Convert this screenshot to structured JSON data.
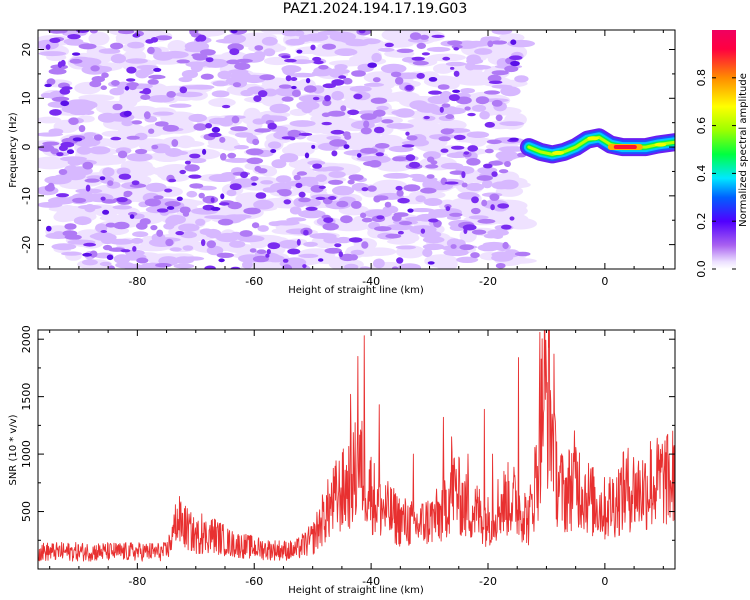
{
  "title": "PAZ1.2024.194.17.19.G03",
  "chart_data": [
    {
      "type": "heatmap",
      "xlabel": "Height of straight line (km)",
      "ylabel": "Frequency (Hz)",
      "xlim": [
        -97,
        12
      ],
      "ylim": [
        -25,
        24
      ],
      "xticks": [
        -80,
        -60,
        -40,
        -20,
        0
      ],
      "yticks": [
        -20,
        -10,
        0,
        10,
        20
      ],
      "colorbar": {
        "label": "Normalized spectral amplitude",
        "range": [
          0,
          1
        ],
        "ticks": [
          0.0,
          0.2,
          0.4,
          0.6,
          0.8
        ]
      },
      "signal_trace": [
        [
          -13,
          0.0
        ],
        [
          -11,
          -1.0
        ],
        [
          -9,
          -1.5
        ],
        [
          -7,
          -1.0
        ],
        [
          -5,
          0.0
        ],
        [
          -3,
          1.5
        ],
        [
          -1,
          2.0
        ],
        [
          1,
          0.5
        ],
        [
          3,
          0.0
        ],
        [
          5,
          0.0
        ],
        [
          7,
          0.0
        ],
        [
          9,
          0.5
        ],
        [
          12,
          1.0
        ]
      ]
    },
    {
      "type": "line",
      "xlabel": "Height of straight line (km)",
      "ylabel": "SNR (10 * v/v)",
      "xlim": [
        -97,
        12
      ],
      "ylim": [
        0,
        2080
      ],
      "xticks": [
        -80,
        -60,
        -40,
        -20,
        0
      ],
      "yticks": [
        500,
        1000,
        1500,
        2000
      ],
      "color": "#e83030",
      "baseline": [
        [
          -97,
          150
        ],
        [
          -75,
          150
        ],
        [
          -73,
          420
        ],
        [
          -70,
          280
        ],
        [
          -67,
          300
        ],
        [
          -64,
          220
        ],
        [
          -58,
          170
        ],
        [
          -53,
          160
        ],
        [
          -50,
          260
        ],
        [
          -48,
          460
        ],
        [
          -46,
          620
        ],
        [
          -44,
          720
        ],
        [
          -42,
          900
        ],
        [
          -41,
          800
        ],
        [
          -39,
          560
        ],
        [
          -35,
          420
        ],
        [
          -32,
          380
        ],
        [
          -28,
          470
        ],
        [
          -26,
          720
        ],
        [
          -24,
          550
        ],
        [
          -22,
          500
        ],
        [
          -20,
          420
        ],
        [
          -18,
          560
        ],
        [
          -16,
          620
        ],
        [
          -14,
          500
        ],
        [
          -13,
          420
        ],
        [
          -11.5,
          880
        ],
        [
          -10.5,
          1550
        ],
        [
          -9.5,
          1450
        ],
        [
          -8.5,
          850
        ],
        [
          -7,
          630
        ],
        [
          -5,
          800
        ],
        [
          -4,
          700
        ],
        [
          -2,
          580
        ],
        [
          0,
          520
        ],
        [
          2,
          600
        ],
        [
          4,
          700
        ],
        [
          6,
          680
        ],
        [
          8,
          720
        ],
        [
          10,
          790
        ],
        [
          12,
          720
        ]
      ],
      "peaks": [
        [
          -73.5,
          560
        ],
        [
          -69,
          480
        ],
        [
          -43.5,
          1520
        ],
        [
          -42.3,
          1850
        ],
        [
          -41.2,
          2030
        ],
        [
          -38.6,
          1430
        ],
        [
          -32.8,
          1000
        ],
        [
          -27.6,
          1320
        ],
        [
          -26.2,
          1150
        ],
        [
          -23.4,
          1000
        ],
        [
          -20.6,
          1390
        ],
        [
          -19.2,
          1000
        ],
        [
          -14.8,
          1840
        ],
        [
          -11.1,
          2060
        ],
        [
          -9.6,
          1930
        ],
        [
          -8.7,
          1870
        ],
        [
          3.2,
          1020
        ],
        [
          7.8,
          1110
        ],
        [
          10.6,
          1150
        ],
        [
          11.6,
          1200
        ]
      ]
    }
  ]
}
